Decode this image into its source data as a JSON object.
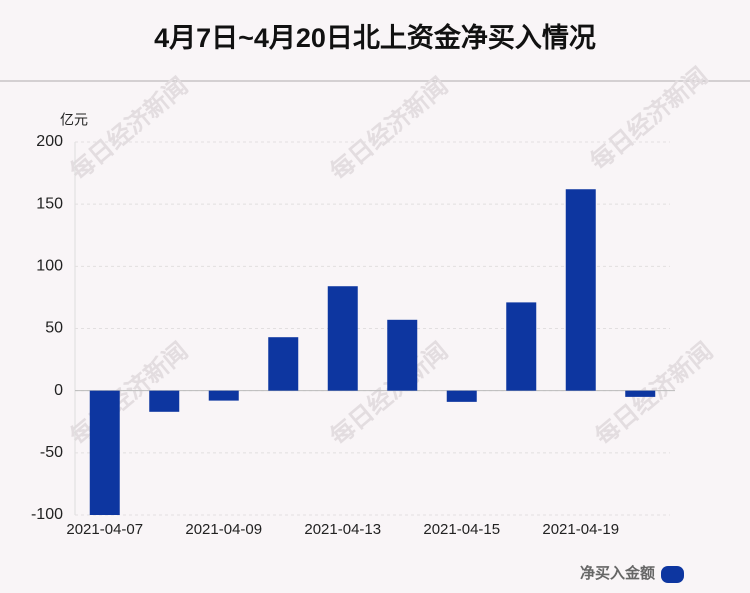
{
  "chart_data": {
    "type": "bar",
    "title": "4月7日~4月20日北上资金净买入情况",
    "y_unit": "亿元",
    "watermark": "每日经济新闻",
    "categories": [
      "2021-04-07",
      null,
      "2021-04-09",
      null,
      "2021-04-13",
      null,
      "2021-04-15",
      null,
      "2021-04-19",
      null
    ],
    "series": [
      {
        "name": "净买入金额",
        "color": "#0d36a0",
        "values": [
          -100,
          -17,
          -8,
          43,
          84,
          57,
          -9,
          71,
          162,
          -5
        ]
      }
    ],
    "ylim": [
      -100,
      200
    ],
    "yticks": [
      -100,
      -50,
      0,
      50,
      100,
      150,
      200
    ],
    "grid": true
  }
}
